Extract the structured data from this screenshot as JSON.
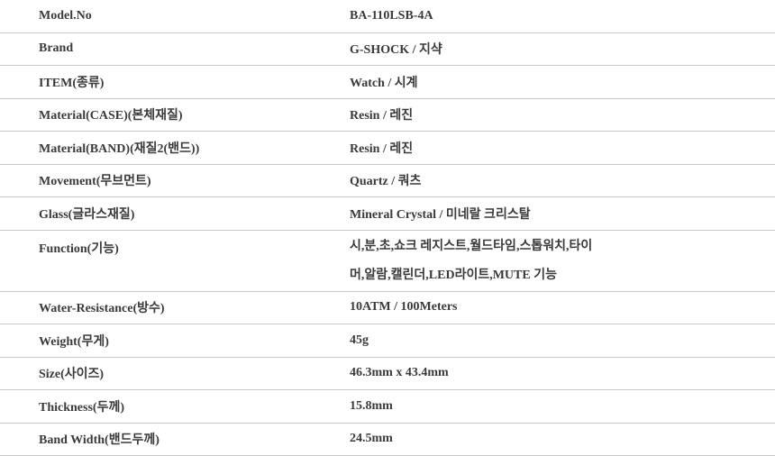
{
  "specs": [
    {
      "label": "Model.No",
      "value": "BA-110LSB-4A"
    },
    {
      "label": "Brand",
      "value": "G-SHOCK / 지샥"
    },
    {
      "label": "ITEM(종류)",
      "value": "Watch / 시계"
    },
    {
      "label": "Material(CASE)(본체재질)",
      "value": "Resin / 레진"
    },
    {
      "label": "Material(BAND)(재질2(밴드))",
      "value": "Resin / 레진"
    },
    {
      "label": "Movement(무브먼트)",
      "value": "Quartz / 쿼츠"
    },
    {
      "label": "Glass(글라스재질)",
      "value": "Mineral Crystal / 미네랄 크리스탈"
    },
    {
      "label": "Function(기능)",
      "value_line1": "시,분,초,쇼크 레지스트,월드타임,스톱워치,타이",
      "value_line2": "머,알람,캘린더,LED라이트,MUTE 기능"
    },
    {
      "label": "Water-Resistance(방수)",
      "value": "10ATM / 100Meters"
    },
    {
      "label": "Weight(무게)",
      "value": "45g"
    },
    {
      "label": "Size(사이즈)",
      "value": "46.3mm x 43.4mm"
    },
    {
      "label": "Thickness(두께)",
      "value": "15.8mm"
    },
    {
      "label": "Band Width(밴드두께)",
      "value": "24.5mm"
    }
  ]
}
